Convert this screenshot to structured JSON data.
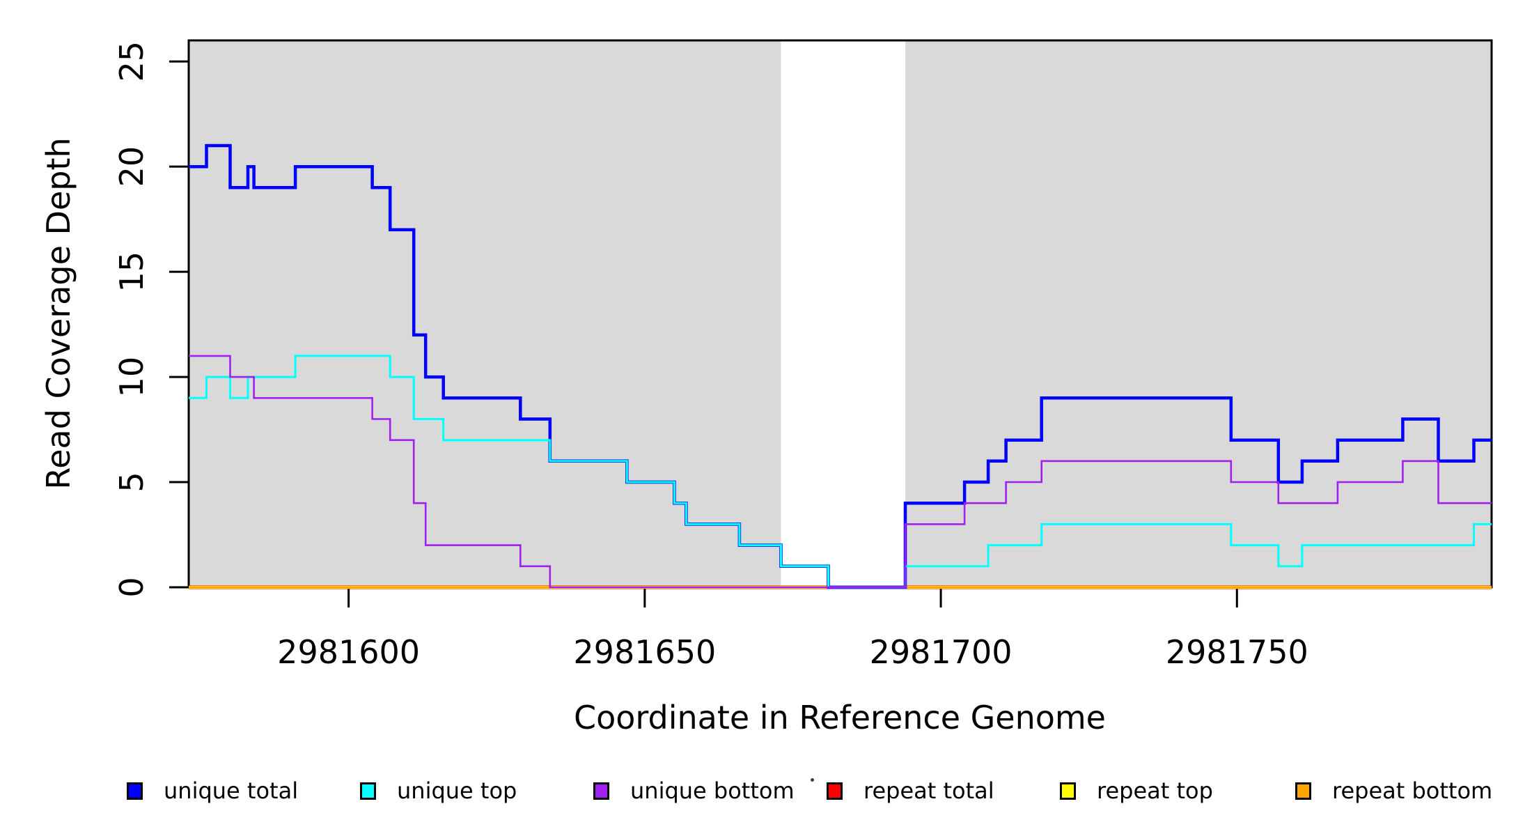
{
  "chart_data": {
    "type": "line",
    "subtype": "step",
    "title": "",
    "xlabel": "Coordinate in Reference Genome",
    "ylabel": "Read Coverage Depth",
    "x_range": [
      2981573,
      2981793
    ],
    "y_range": [
      0,
      26
    ],
    "x_ticks": [
      2981600,
      2981650,
      2981700,
      2981750
    ],
    "y_ticks": [
      0,
      5,
      10,
      15,
      20,
      25
    ],
    "grid": false,
    "legend_position": "bottom",
    "background_color": "#ffffff",
    "highlight_fill": "#D9D9D9",
    "highlight_regions": [
      [
        2981573,
        2981673
      ],
      [
        2981694,
        2981793
      ]
    ],
    "series": [
      {
        "name": "unique total",
        "color": "#0000FF",
        "width": 4.5,
        "draw_order": 4,
        "segments": [
          [
            2981573,
            2981576,
            20
          ],
          [
            2981576,
            2981580,
            21
          ],
          [
            2981580,
            2981583,
            19
          ],
          [
            2981583,
            2981584,
            20
          ],
          [
            2981584,
            2981591,
            19
          ],
          [
            2981591,
            2981604,
            20
          ],
          [
            2981604,
            2981607,
            19
          ],
          [
            2981607,
            2981611,
            17
          ],
          [
            2981611,
            2981613,
            12
          ],
          [
            2981613,
            2981616,
            10
          ],
          [
            2981616,
            2981629,
            9
          ],
          [
            2981629,
            2981634,
            8
          ],
          [
            2981634,
            2981647,
            6
          ],
          [
            2981647,
            2981655,
            5
          ],
          [
            2981655,
            2981657,
            4
          ],
          [
            2981657,
            2981666,
            3
          ],
          [
            2981666,
            2981673,
            2
          ],
          [
            2981673,
            2981681,
            1
          ],
          [
            2981681,
            2981694,
            0
          ],
          [
            2981694,
            2981704,
            4
          ],
          [
            2981704,
            2981708,
            5
          ],
          [
            2981708,
            2981711,
            6
          ],
          [
            2981711,
            2981717,
            7
          ],
          [
            2981717,
            2981749,
            9
          ],
          [
            2981749,
            2981757,
            7
          ],
          [
            2981757,
            2981761,
            5
          ],
          [
            2981761,
            2981767,
            6
          ],
          [
            2981767,
            2981778,
            7
          ],
          [
            2981778,
            2981784,
            8
          ],
          [
            2981784,
            2981790,
            6
          ],
          [
            2981790,
            2981793,
            7
          ]
        ]
      },
      {
        "name": "unique top",
        "color": "#00FFFF",
        "width": 3,
        "draw_order": 5,
        "segments": [
          [
            2981573,
            2981576,
            9
          ],
          [
            2981576,
            2981580,
            10
          ],
          [
            2981580,
            2981583,
            9
          ],
          [
            2981583,
            2981591,
            10
          ],
          [
            2981591,
            2981607,
            11
          ],
          [
            2981607,
            2981611,
            10
          ],
          [
            2981611,
            2981616,
            8
          ],
          [
            2981616,
            2981634,
            7
          ],
          [
            2981634,
            2981647,
            6
          ],
          [
            2981647,
            2981655,
            5
          ],
          [
            2981655,
            2981657,
            4
          ],
          [
            2981657,
            2981666,
            3
          ],
          [
            2981666,
            2981673,
            2
          ],
          [
            2981673,
            2981681,
            1
          ],
          [
            2981681,
            2981694,
            0
          ],
          [
            2981694,
            2981708,
            1
          ],
          [
            2981708,
            2981717,
            2
          ],
          [
            2981717,
            2981749,
            3
          ],
          [
            2981749,
            2981757,
            2
          ],
          [
            2981757,
            2981761,
            1
          ],
          [
            2981761,
            2981790,
            2
          ],
          [
            2981790,
            2981793,
            3
          ]
        ]
      },
      {
        "name": "unique bottom",
        "color": "#A020F0",
        "width": 2.6,
        "draw_order": 6,
        "segments": [
          [
            2981573,
            2981580,
            11
          ],
          [
            2981580,
            2981584,
            10
          ],
          [
            2981584,
            2981604,
            9
          ],
          [
            2981604,
            2981607,
            8
          ],
          [
            2981607,
            2981611,
            7
          ],
          [
            2981611,
            2981613,
            4
          ],
          [
            2981613,
            2981629,
            2
          ],
          [
            2981629,
            2981634,
            1
          ],
          [
            2981634,
            2981694,
            0
          ],
          [
            2981694,
            2981704,
            3
          ],
          [
            2981704,
            2981711,
            4
          ],
          [
            2981711,
            2981717,
            5
          ],
          [
            2981717,
            2981749,
            6
          ],
          [
            2981749,
            2981757,
            5
          ],
          [
            2981757,
            2981767,
            4
          ],
          [
            2981767,
            2981778,
            5
          ],
          [
            2981778,
            2981784,
            6
          ],
          [
            2981784,
            2981793,
            4
          ]
        ]
      },
      {
        "name": "repeat total",
        "color": "#FF0000",
        "width": 5,
        "draw_order": 1,
        "segments": [
          [
            2981573,
            2981793,
            0
          ]
        ]
      },
      {
        "name": "repeat top",
        "color": "#FFFF00",
        "width": 4,
        "draw_order": 2,
        "segments": [
          [
            2981573,
            2981793,
            0
          ]
        ]
      },
      {
        "name": "repeat bottom",
        "color": "#FFA500",
        "width": 3,
        "draw_order": 3,
        "segments": [
          [
            2981573,
            2981793,
            0
          ]
        ]
      }
    ]
  }
}
